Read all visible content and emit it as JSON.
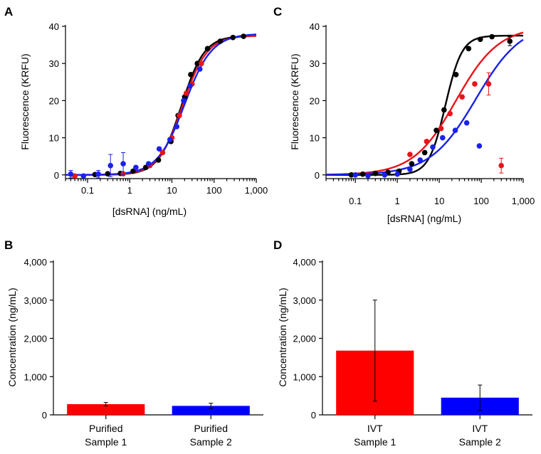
{
  "chart_data": [
    {
      "panel": "A",
      "type": "scatter",
      "xscale": "log",
      "xlim": [
        0.03,
        1000
      ],
      "ylim": [
        -1,
        40
      ],
      "xlabel": "[dsRNA] (ng/mL)",
      "ylabel": "Fluorescence (KRFU)",
      "xticks": [
        0.1,
        1,
        10,
        100,
        1000
      ],
      "xtick_labels": [
        "0.1",
        "1",
        "10",
        "100",
        "1,000"
      ],
      "yticks": [
        0,
        10,
        20,
        30,
        40
      ],
      "ytick_labels": [
        "0",
        "10",
        "20",
        "30",
        "40"
      ],
      "series": [
        {
          "name": "black",
          "color": "#000000",
          "points": [
            [
              0.15,
              0.1
            ],
            [
              0.3,
              0.3
            ],
            [
              0.6,
              0.4
            ],
            [
              1.2,
              1
            ],
            [
              2.4,
              2
            ],
            [
              4.8,
              4
            ],
            [
              9.5,
              9
            ],
            [
              14,
              16
            ],
            [
              20,
              21
            ],
            [
              28,
              27
            ],
            [
              40,
              30
            ],
            [
              70,
              34
            ],
            [
              140,
              36
            ],
            [
              280,
              37
            ],
            [
              500,
              37.3
            ]
          ],
          "fit": {
            "bottom": 0,
            "top": 37.5,
            "ec50": 17,
            "hill": 1.6
          }
        },
        {
          "name": "red",
          "color": "#e8141a",
          "points": [
            [
              0.05,
              -0.3
            ],
            [
              0.18,
              0.2
            ],
            [
              0.7,
              0.3
            ],
            [
              3,
              2.5
            ],
            [
              6,
              6
            ],
            [
              10,
              10
            ],
            [
              15,
              16
            ],
            [
              22,
              22
            ],
            [
              30,
              24.5
            ],
            [
              50,
              30
            ]
          ],
          "errors": [
            [
              28,
              2
            ]
          ],
          "fit": {
            "bottom": 0,
            "top": 37.5,
            "ec50": 18,
            "hill": 1.5
          }
        },
        {
          "name": "blue",
          "color": "#1a22e6",
          "points": [
            [
              0.04,
              0.2
            ],
            [
              0.08,
              -0.3
            ],
            [
              0.18,
              0.2
            ],
            [
              0.35,
              2.5
            ],
            [
              0.7,
              3
            ],
            [
              1.4,
              2
            ],
            [
              2.8,
              3
            ],
            [
              5,
              7
            ],
            [
              9,
              9.5
            ],
            [
              13,
              13
            ],
            [
              19,
              20
            ],
            [
              27,
              24
            ],
            [
              46,
              28.5
            ]
          ],
          "errors": [
            [
              0.04,
              1
            ],
            [
              0.18,
              1
            ],
            [
              0.35,
              3
            ],
            [
              0.7,
              3
            ]
          ],
          "fit": {
            "bottom": 0,
            "top": 38,
            "ec50": 20,
            "hill": 1.35
          }
        }
      ]
    },
    {
      "panel": "C",
      "type": "scatter",
      "xscale": "log",
      "xlim": [
        0.02,
        1000
      ],
      "ylim": [
        -1,
        40
      ],
      "xlabel": "[dsRNA] (ng/mL)",
      "ylabel": "Fluorescence (KRFU)",
      "xticks": [
        0.1,
        1,
        10,
        100,
        1000
      ],
      "xtick_labels": [
        "0.1",
        "1",
        "10",
        "100",
        "1,000"
      ],
      "yticks": [
        0,
        10,
        20,
        30,
        40
      ],
      "ytick_labels": [
        "0",
        "10",
        "20",
        "30",
        "40"
      ],
      "series": [
        {
          "name": "black",
          "color": "#000000",
          "points": [
            [
              0.08,
              0
            ],
            [
              0.15,
              0.2
            ],
            [
              0.3,
              0.4
            ],
            [
              0.6,
              0.7
            ],
            [
              1.1,
              1
            ],
            [
              2.2,
              3
            ],
            [
              4.5,
              6
            ],
            [
              8.5,
              12
            ],
            [
              13,
              17.5
            ],
            [
              25,
              27
            ],
            [
              50,
              34
            ],
            [
              95,
              36.5
            ],
            [
              180,
              37.2
            ],
            [
              480,
              36
            ]
          ],
          "errors": [
            [
              480,
              1.2
            ]
          ],
          "fit": {
            "bottom": 0,
            "top": 37.5,
            "ec50": 14,
            "hill": 2.2
          }
        },
        {
          "name": "red",
          "color": "#e8141a",
          "points": [
            [
              2,
              5.5
            ],
            [
              5,
              9
            ],
            [
              11,
              12.5
            ],
            [
              18,
              16.5
            ],
            [
              35,
              21
            ],
            [
              70,
              24.5
            ],
            [
              150,
              24.5
            ],
            [
              300,
              2.5
            ]
          ],
          "errors": [
            [
              150,
              3
            ],
            [
              300,
              2
            ]
          ],
          "fit": {
            "bottom": 0,
            "top": 40,
            "ec50": 25,
            "hill": 0.85
          }
        },
        {
          "name": "blue",
          "color": "#1a22e6",
          "points": [
            [
              0.1,
              0
            ],
            [
              0.2,
              -0.2
            ],
            [
              0.5,
              0
            ],
            [
              1,
              0.2
            ],
            [
              2,
              1.5
            ],
            [
              3.5,
              4
            ],
            [
              7,
              7.5
            ],
            [
              12,
              10
            ],
            [
              24,
              12
            ],
            [
              45,
              14
            ],
            [
              90,
              7.8
            ]
          ],
          "fit": {
            "bottom": 0,
            "top": 41,
            "ec50": 75,
            "hill": 0.8
          }
        }
      ]
    },
    {
      "panel": "B",
      "type": "bar",
      "ylabel": "Concentration (ng/mL)",
      "ylim": [
        0,
        4000
      ],
      "yticks": [
        0,
        1000,
        2000,
        3000,
        4000
      ],
      "ytick_labels": [
        "0",
        "1,000",
        "2,000",
        "3,000",
        "4,000"
      ],
      "categories": [
        {
          "line1": "Purified",
          "line2": "Sample 1"
        },
        {
          "line1": "Purified",
          "line2": "Sample 2"
        }
      ],
      "values": [
        280,
        235
      ],
      "errors": [
        45,
        70
      ],
      "colors": [
        "#ff0000",
        "#0000ff"
      ]
    },
    {
      "panel": "D",
      "type": "bar",
      "ylabel": "Concentration (ng/mL)",
      "ylim": [
        0,
        4000
      ],
      "yticks": [
        0,
        1000,
        2000,
        3000,
        4000
      ],
      "ytick_labels": [
        "0",
        "1,000",
        "2,000",
        "3,000",
        "4,000"
      ],
      "categories": [
        {
          "line1": "IVT",
          "line2": "Sample 1"
        },
        {
          "line1": "IVT",
          "line2": "Sample 2"
        }
      ],
      "values": [
        1680,
        450
      ],
      "errors": [
        1320,
        330
      ],
      "colors": [
        "#ff0000",
        "#0000ff"
      ]
    }
  ]
}
